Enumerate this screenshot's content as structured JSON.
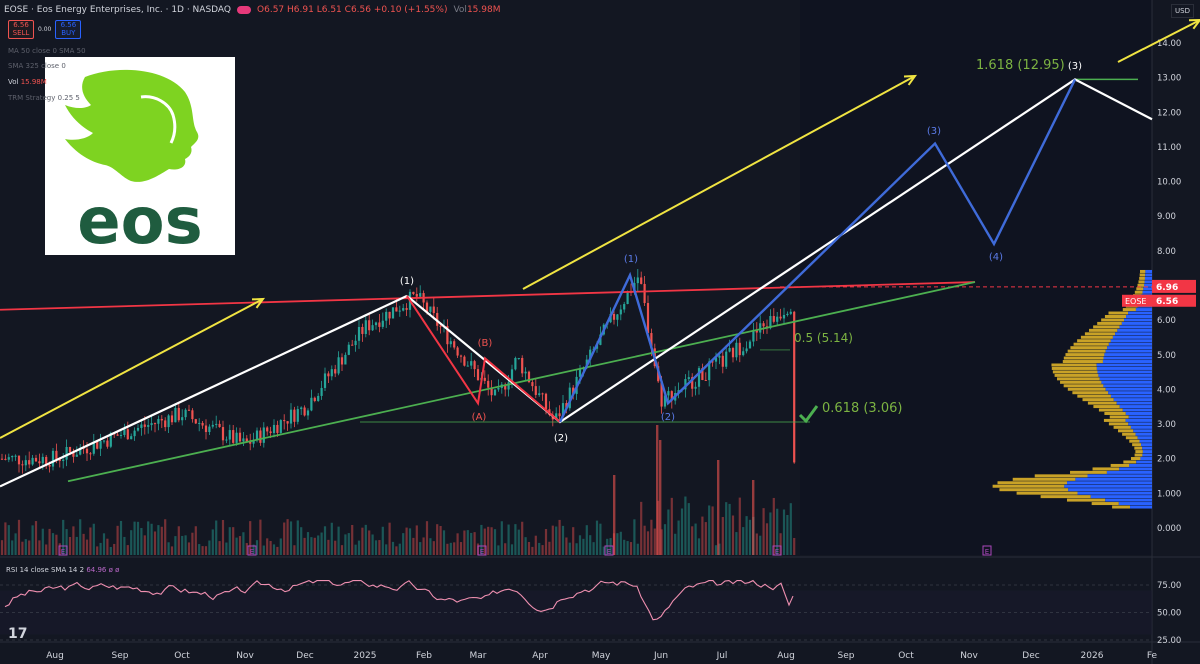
{
  "header": {
    "symbol": "EOSE · Eos Energy Enterprises, Inc. · 1D · NASDAQ",
    "open": "O6.57",
    "high": "H6.91",
    "low": "L6.51",
    "close": "C6.56",
    "change": "+0.10 (+1.55%)",
    "volume_label": "Vol",
    "volume_value": "15.98M"
  },
  "trade": {
    "sell_price": "6.56",
    "sell_label": "SELL",
    "spread": "0.00",
    "buy_price": "6.56",
    "buy_label": "BUY"
  },
  "indicators": {
    "ma50": "MA 50 close 0 SMA 50",
    "sma325": "SMA 325 close 0",
    "vol_label": "Vol",
    "vol_value": "15.98M",
    "trm": "TRM Strategy 0.25 5"
  },
  "currency": "USD",
  "rsi": {
    "label": "RSI 14 close SMA 14 2",
    "value": "64.96",
    "extra": "ø ø"
  },
  "tv_logo": "17",
  "colors": {
    "white_line": "#ffffff",
    "blue_wave": "#3f6bd9",
    "red_line": "#f23645",
    "green_line": "#4caf50",
    "yellow_arrow": "#f0e442",
    "fib": "#7cb342",
    "up_candle": "#26a69a",
    "down_candle": "#ef5350",
    "rsi_line": "#ef8fb0",
    "vp_blue": "#2962ff",
    "vp_gold": "#c9a227"
  },
  "chart_data": {
    "type": "line",
    "title": "EOSE · Eos Energy Enterprises, Inc. · 1D · NASDAQ",
    "price_axis": {
      "ticks": [
        "14.00",
        "13.00",
        "12.00",
        "11.00",
        "10.00",
        "9.00",
        "8.00",
        "7.00",
        "6.00",
        "5.00",
        "4.00",
        "3.00",
        "2.00",
        "1.000",
        "0.000"
      ],
      "ylim": [
        0,
        14
      ]
    },
    "time_axis": {
      "ticks": [
        "Aug",
        "Sep",
        "Oct",
        "Nov",
        "Dec",
        "2025",
        "Feb",
        "Mar",
        "Apr",
        "May",
        "Jun",
        "Jul",
        "Aug",
        "Sep",
        "Oct",
        "Nov",
        "Dec",
        "2026",
        "Fe"
      ]
    },
    "last_price": {
      "symbol": "EOSE",
      "value": "6.56"
    },
    "dashed_level": {
      "value": "6.96"
    },
    "price_series": [
      {
        "date": "2024-08",
        "value": 2.0
      },
      {
        "date": "2024-09",
        "value": 2.7
      },
      {
        "date": "2024-10",
        "value": 3.3
      },
      {
        "date": "2024-11",
        "value": 2.4
      },
      {
        "date": "2024-12",
        "value": 3.5
      },
      {
        "date": "2025-01",
        "value": 5.8
      },
      {
        "date": "2025-01-27",
        "value": 6.7
      },
      {
        "date": "2025-03-10",
        "value": 3.7
      },
      {
        "date": "2025-03-20",
        "value": 4.9
      },
      {
        "date": "2025-04-08",
        "value": 3.06
      },
      {
        "date": "2025-05-01",
        "value": 5.5
      },
      {
        "date": "2025-05-20",
        "value": 7.3
      },
      {
        "date": "2025-06-01",
        "value": 3.7
      },
      {
        "date": "2025-07-01",
        "value": 4.8
      },
      {
        "date": "2025-08-05",
        "value": 6.56
      }
    ],
    "wave_labels": [
      {
        "label": "(1)",
        "value": 6.7
      },
      {
        "label": "(A)",
        "value": 3.6
      },
      {
        "label": "(B)",
        "value": 4.9
      },
      {
        "label": "(2)",
        "value": 3.06
      },
      {
        "label": "(1)",
        "value": 7.3
      },
      {
        "label": "(2)",
        "value": 3.6
      },
      {
        "label": "(3)",
        "value": 11.1
      },
      {
        "label": "(4)",
        "value": 8.2
      },
      {
        "label": "(3)",
        "value": 12.95
      }
    ],
    "fib_labels": [
      "1.618 (12.95)",
      "0.5 (5.14)",
      "0.618 (3.06)"
    ],
    "rsi_axis": {
      "ticks": [
        "75.00",
        "50.00",
        "25.00"
      ],
      "ylim": [
        25,
        80
      ]
    },
    "rsi_last": 64.96
  }
}
